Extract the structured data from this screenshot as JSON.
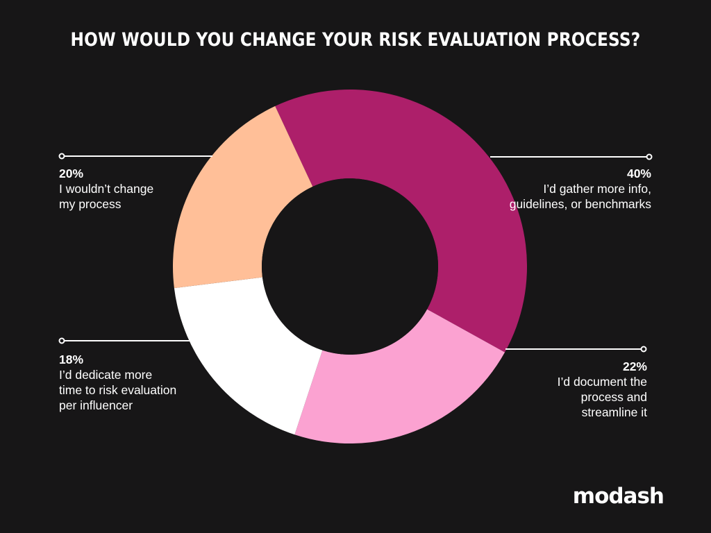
{
  "title": "HOW WOULD YOU CHANGE YOUR RISK EVALUATION PROCESS?",
  "brand": "modash",
  "colors": {
    "background": "#171617",
    "text": "#ffffff",
    "leader_line": "#ffffff"
  },
  "chart_data": {
    "type": "pie",
    "donut": true,
    "start_angle_deg": 335,
    "direction": "clockwise",
    "slices": [
      {
        "label": "I’d gather more info, guidelines, or benchmarks",
        "value": 40,
        "value_label": "40%",
        "color": "#ad1f6a"
      },
      {
        "label": "I’d document the process and streamline it",
        "value": 22,
        "value_label": "22%",
        "color": "#fba2d1"
      },
      {
        "label": "I’d dedicate more time to risk evaluation per influencer",
        "value": 18,
        "value_label": "18%",
        "color": "#ffffff"
      },
      {
        "label": "I wouldn’t change my process",
        "value": 20,
        "value_label": "20%",
        "color": "#ffbf98"
      }
    ]
  }
}
